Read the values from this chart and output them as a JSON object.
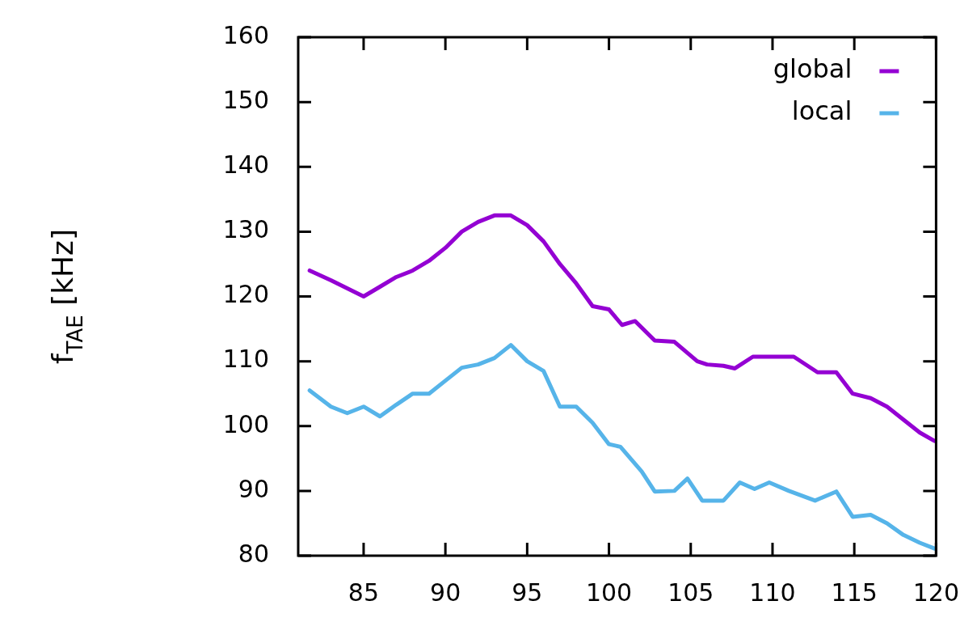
{
  "chart_data": {
    "type": "line",
    "ylabel": "f$_{TAE}$ [kHz]",
    "xlim": [
      81,
      120
    ],
    "xticks": [
      85,
      90,
      95,
      100,
      105,
      110,
      115,
      120
    ],
    "ylim": [
      80,
      160
    ],
    "yticks": [
      80,
      90,
      100,
      110,
      120,
      130,
      140,
      150,
      160
    ],
    "legend": "top right",
    "grid": false,
    "marker": "none",
    "line_style": "solid",
    "x": [
      81.7,
      83,
      85,
      86,
      87,
      88,
      89,
      90,
      91,
      92,
      93,
      94,
      95,
      96,
      97,
      98,
      99,
      100,
      100.8,
      101.6,
      102.8,
      104,
      105.4,
      106,
      107,
      107.7,
      108.8,
      110,
      111.3,
      112.75,
      113.9,
      114.9,
      116,
      117,
      118,
      119,
      119.9
    ],
    "series": [
      {
        "name": "global",
        "color": "#9400d3",
        "values": [
          124,
          122.5,
          120,
          121.5,
          123,
          124,
          125.5,
          127.5,
          130,
          131.5,
          132.5,
          132.5,
          131,
          128.5,
          125,
          122,
          118.5,
          118,
          115.6,
          116.2,
          113.2,
          113,
          110,
          109.5,
          109.3,
          108.9,
          110.7,
          110.7,
          110.7,
          108.3,
          108.3,
          105,
          104.3,
          103,
          101,
          99,
          97.7
        ]
      },
      {
        "name": "local",
        "color": "#56b4e9",
        "x": [
          81.7,
          83,
          84,
          85,
          86,
          87,
          88,
          89,
          90,
          91,
          92,
          93,
          94,
          95,
          96,
          97,
          98,
          99,
          100,
          100.7,
          102,
          102.8,
          104,
          104.8,
          105.7,
          107,
          108,
          108.9,
          109.8,
          111,
          112.6,
          113.9,
          114.9,
          116,
          117,
          118,
          119,
          119.9
        ],
        "values": [
          105.5,
          103,
          102,
          103,
          101.5,
          103.3,
          105,
          105,
          107,
          109,
          109.5,
          110.5,
          112.5,
          110,
          108.5,
          103,
          103,
          100.5,
          97.2,
          96.8,
          93,
          89.9,
          90,
          91.9,
          88.5,
          88.5,
          91.3,
          90.3,
          91.3,
          90,
          88.5,
          89.9,
          86,
          86.3,
          85,
          83.2,
          82,
          81.1
        ]
      }
    ]
  }
}
